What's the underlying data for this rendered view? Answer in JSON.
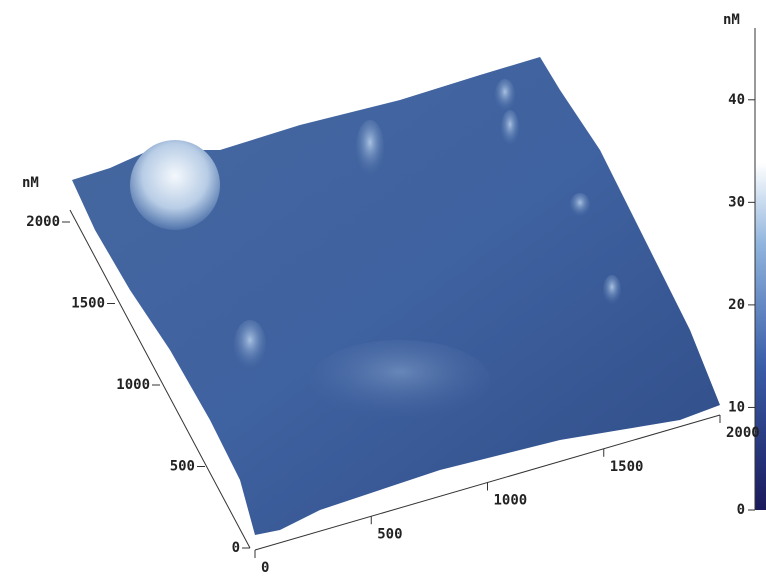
{
  "left_axis": {
    "unit": "nM",
    "ticks": [
      0,
      500,
      1000,
      1500,
      2000
    ]
  },
  "bottom_axis": {
    "ticks": [
      0,
      500,
      1000,
      1500,
      2000
    ]
  },
  "colorbar": {
    "unit": "nM",
    "ticks": [
      0,
      10,
      20,
      30,
      40
    ],
    "range": [
      0,
      47
    ]
  }
}
